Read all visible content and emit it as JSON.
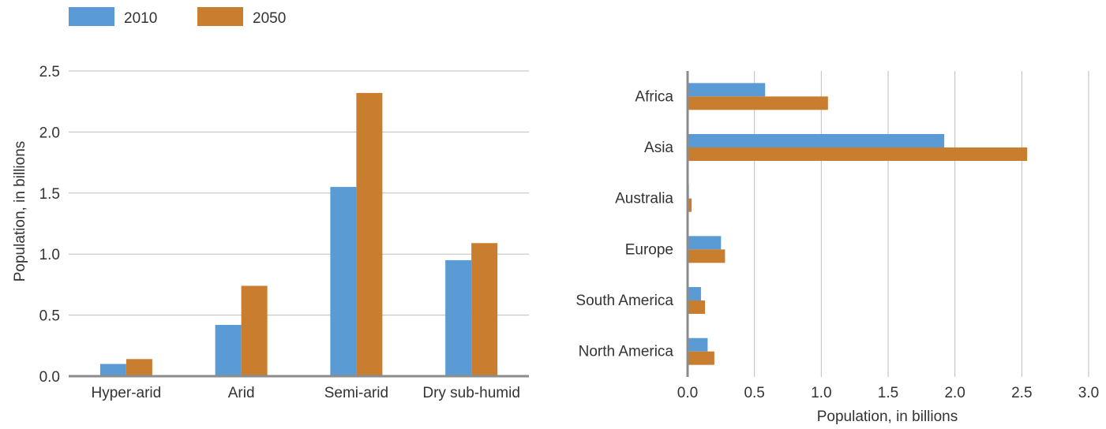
{
  "legend": {
    "entries": [
      {
        "label": "2010",
        "color": "#5b9bd5"
      },
      {
        "label": "2050",
        "color": "#c97d2e"
      }
    ]
  },
  "chart_data": [
    {
      "type": "bar",
      "orientation": "vertical",
      "categories": [
        "Hyper-arid",
        "Arid",
        "Semi-arid",
        "Dry sub-humid"
      ],
      "series": [
        {
          "name": "2010",
          "values": [
            0.1,
            0.42,
            1.55,
            0.95
          ]
        },
        {
          "name": "2050",
          "values": [
            0.14,
            0.74,
            2.32,
            1.09
          ]
        }
      ],
      "ylabel": "Population, in billions",
      "ylim": [
        0,
        2.5
      ],
      "yticks": [
        "0.0",
        "0.5",
        "1.0",
        "1.5",
        "2.0",
        "2.5"
      ],
      "grid": true
    },
    {
      "type": "bar",
      "orientation": "horizontal",
      "categories": [
        "Africa",
        "Asia",
        "Australia",
        "Europe",
        "South America",
        "North America"
      ],
      "series": [
        {
          "name": "2010",
          "values": [
            0.58,
            1.92,
            0.01,
            0.25,
            0.1,
            0.15
          ]
        },
        {
          "name": "2050",
          "values": [
            1.05,
            2.54,
            0.03,
            0.28,
            0.13,
            0.2
          ]
        }
      ],
      "xlabel": "Population, in billions",
      "xlim": [
        0,
        3.0
      ],
      "xticks": [
        "0.0",
        "0.5",
        "1.0",
        "1.5",
        "2.0",
        "2.5",
        "3.0"
      ],
      "grid": true
    }
  ]
}
